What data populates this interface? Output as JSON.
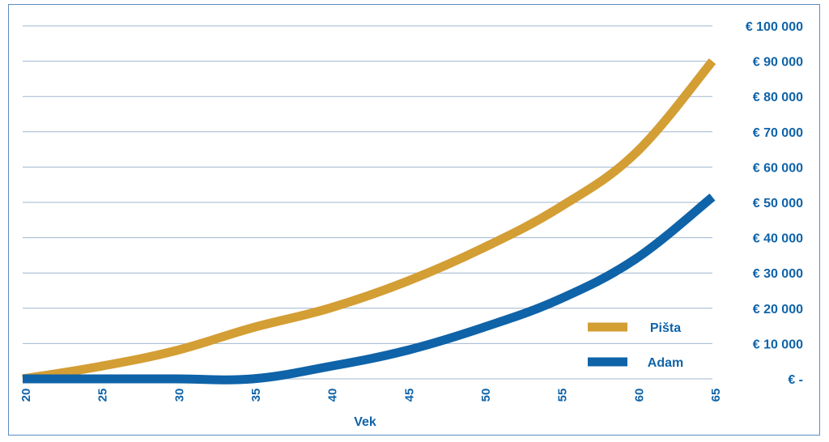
{
  "chart_data": {
    "type": "line",
    "title": "",
    "xlabel": "Vek",
    "ylabel": "",
    "x": [
      20,
      25,
      30,
      35,
      40,
      45,
      50,
      55,
      60,
      65
    ],
    "xlim": [
      20,
      65
    ],
    "ylim": [
      0,
      100000
    ],
    "x_tick_labels": [
      "20",
      "25",
      "30",
      "35",
      "40",
      "45",
      "50",
      "55",
      "60",
      "65"
    ],
    "y_ticks": [
      0,
      10000,
      20000,
      30000,
      40000,
      50000,
      60000,
      70000,
      80000,
      90000,
      100000
    ],
    "y_tick_labels": [
      "€ -",
      "€ 10 000",
      "€ 20 000",
      "€ 30 000",
      "€ 40 000",
      "€ 50 000",
      "€ 60 000",
      "€ 70 000",
      "€ 80 000",
      "€ 90 000",
      "€ 100 000"
    ],
    "grid": true,
    "legend_position": "bottom-right",
    "series": [
      {
        "name": "Pišta",
        "color": "#d39e34",
        "values": [
          0,
          3500,
          8000,
          14500,
          20000,
          27500,
          37000,
          48500,
          64000,
          90000
        ]
      },
      {
        "name": "Adam",
        "color": "#0f63a8",
        "values": [
          0,
          0,
          0,
          0,
          3500,
          8000,
          14500,
          22500,
          34000,
          51500
        ]
      }
    ]
  }
}
